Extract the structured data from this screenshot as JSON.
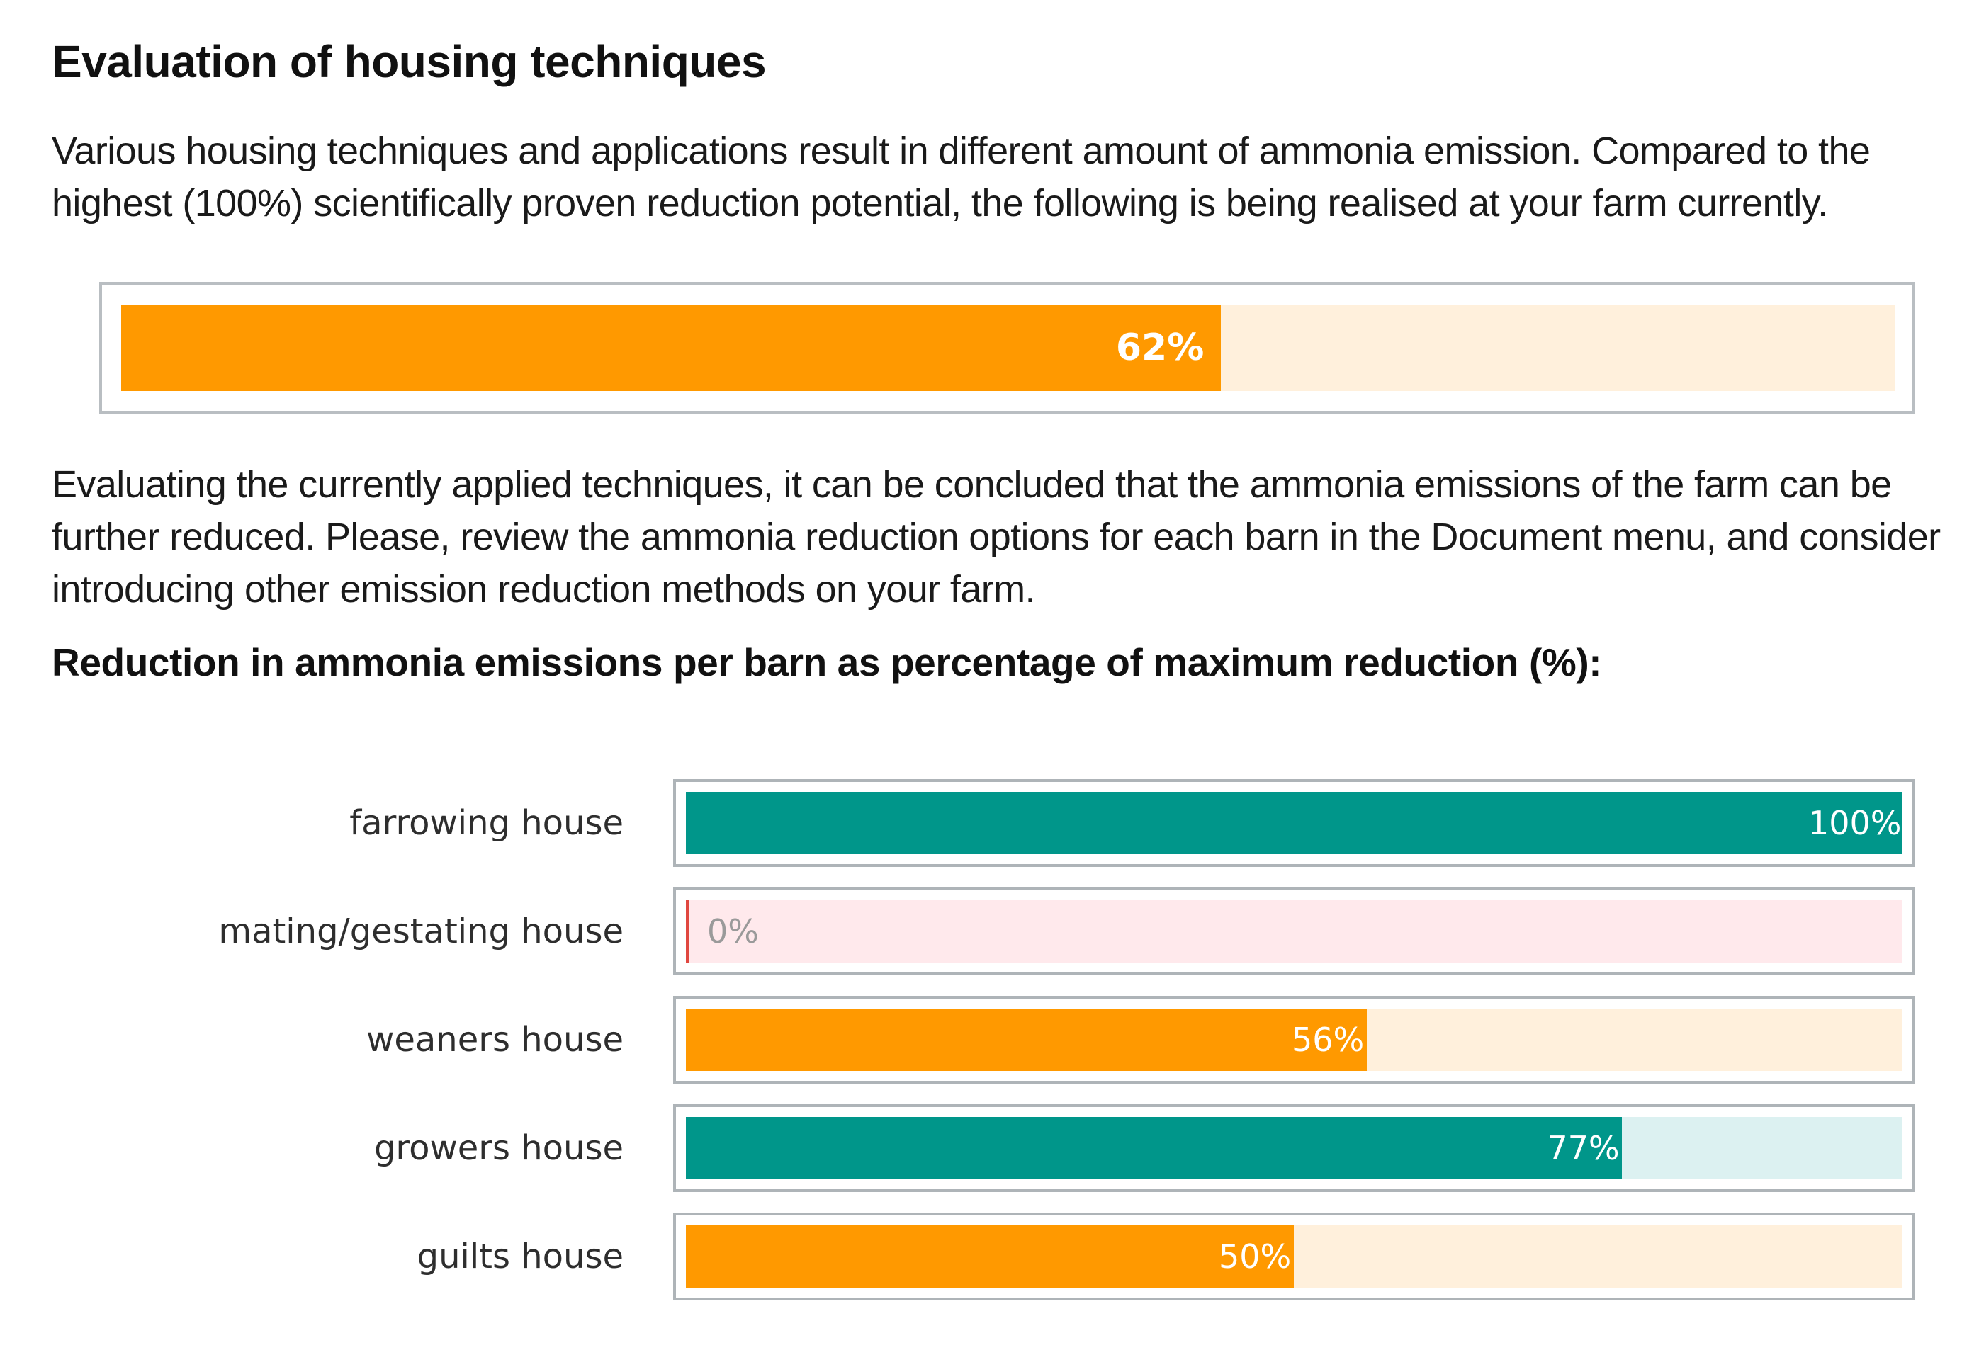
{
  "title": "Evaluation of housing techniques",
  "intro_text": "Various housing techniques and applications result in different amount of ammonia emission. Compared to the highest (100%) scientifically proven reduction potential, the following is being realised at your farm currently.",
  "overall": {
    "value": 62,
    "label": "62%"
  },
  "conclusion_text": "Evaluating the currently applied techniques, it can be concluded that the ammonia emissions of the farm can be further reduced. Please, review the ammonia reduction options for each barn in the Document menu, and consider introducing other emission reduction methods on your farm.",
  "chart_title": "Reduction in ammonia emissions per barn as percentage of maximum reduction (%):",
  "colors": {
    "orange": "#ff9900",
    "orange_track": "#fff0dc",
    "teal": "#00968a",
    "teal_track": "#dcf1f1",
    "red": "#e0473f",
    "red_track": "#ffe9ec",
    "zero_label": "#9a9a9a"
  },
  "chart_data": {
    "type": "bar",
    "orientation": "horizontal",
    "title": "Reduction in ammonia emissions per barn as percentage of maximum reduction (%):",
    "categories": [
      "farrowing house",
      "mating/gestating house",
      "weaners house",
      "growers house",
      "guilts house"
    ],
    "values": [
      100,
      0,
      56,
      77,
      50
    ],
    "value_labels": [
      "100%",
      "0%",
      "56%",
      "77%",
      "50%"
    ],
    "bar_colors": [
      "teal",
      "red",
      "orange",
      "teal",
      "orange"
    ],
    "xlim": [
      0,
      100
    ],
    "grid": false,
    "legend": "none"
  }
}
